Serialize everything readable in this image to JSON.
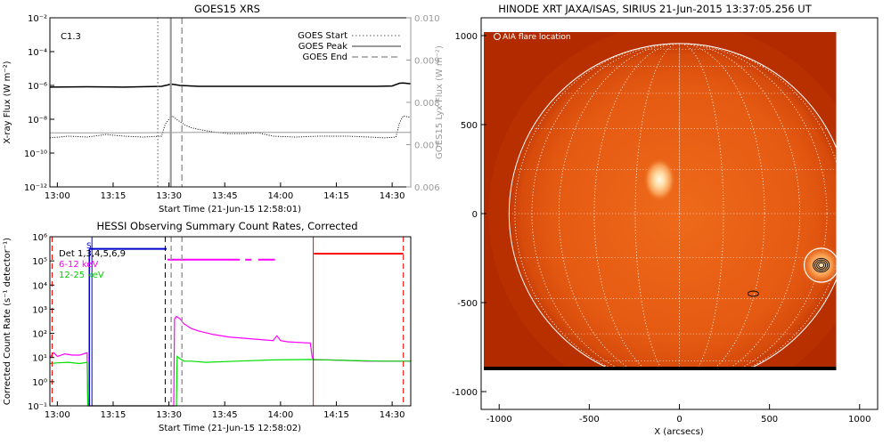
{
  "chart_data": [
    {
      "type": "line",
      "title": "GOES15 XRS",
      "xlabel": "Start Time (21-Jun-15 12:58:01)",
      "ylabel": "X-ray Flux (W m⁻²)",
      "ylabel_right": "GOES15 Lyx Flux (W m⁻²)",
      "xlim": [
        0,
        97
      ],
      "x_ticks": [
        2,
        17,
        32,
        47,
        62,
        77,
        92
      ],
      "x_ticklabels": [
        "13:00",
        "13:15",
        "13:30",
        "13:45",
        "14:00",
        "14:15",
        "14:30"
      ],
      "ylim_log": [
        -12,
        -2
      ],
      "y_ticklabels": [
        "10⁻¹²",
        "10⁻¹⁰",
        "10⁻⁸",
        "10⁻⁶",
        "10⁻⁴",
        "10⁻²"
      ],
      "ylim_right": [
        0.006,
        0.01
      ],
      "y_right_ticklabels": [
        "0.006",
        "0.007",
        "0.008",
        "0.009",
        "0.010"
      ],
      "class_label": "C1.3",
      "legend": {
        "placement": "top-right",
        "entries": [
          "GOES Start",
          "GOES Peak",
          "GOES End"
        ]
      },
      "markers_min": {
        "start": 29,
        "peak": 32.5,
        "end": 35.5
      },
      "series": [
        {
          "key": "long",
          "color": "#000000",
          "x": [
            0,
            10,
            20,
            30,
            31.5,
            32.5,
            33.5,
            35,
            40,
            50,
            60,
            70,
            80,
            88,
            92,
            94,
            95,
            97
          ],
          "logy": [
            -6.1,
            -6.08,
            -6.1,
            -6.05,
            -5.98,
            -5.92,
            -5.95,
            -6.0,
            -6.05,
            -6.05,
            -6.05,
            -6.05,
            -6.05,
            -6.05,
            -6.03,
            -5.87,
            -5.85,
            -5.9
          ]
        },
        {
          "key": "short",
          "color": "#000000",
          "x": [
            0,
            5,
            10,
            15,
            20,
            25,
            30,
            31,
            32,
            33,
            34,
            36,
            38,
            40,
            44,
            48,
            52,
            56,
            60,
            66,
            72,
            80,
            86,
            90,
            93,
            94,
            95,
            97
          ],
          "logy": [
            -9.1,
            -9.0,
            -9.05,
            -8.9,
            -9.0,
            -9.05,
            -9.0,
            -8.3,
            -8.0,
            -7.8,
            -8.0,
            -8.3,
            -8.5,
            -8.6,
            -8.75,
            -8.85,
            -8.85,
            -8.8,
            -9.0,
            -9.05,
            -9.0,
            -9.0,
            -9.05,
            -9.1,
            -9.05,
            -8.2,
            -7.8,
            -7.9
          ]
        },
        {
          "key": "lya",
          "color": "#9a9a9a",
          "x": [
            0,
            20,
            40,
            60,
            80,
            97
          ],
          "y": [
            0.00728,
            0.00728,
            0.00729,
            0.00729,
            0.00729,
            0.00729
          ]
        }
      ]
    },
    {
      "type": "line",
      "title": "HESSI Observing Summary Count Rates, Corrected",
      "xlabel": "Start Time (21-Jun-15 12:58:02)",
      "ylabel": "Corrected Count Rate (s⁻¹ detector⁻¹)",
      "xlim": [
        0,
        97
      ],
      "x_ticks": [
        2,
        17,
        32,
        47,
        62,
        77,
        92
      ],
      "x_ticklabels": [
        "13:00",
        "13:15",
        "13:30",
        "13:45",
        "14:00",
        "14:15",
        "14:30"
      ],
      "ylim_log": [
        -1,
        6
      ],
      "y_ticklabels": [
        "10⁻¹",
        "10⁰",
        "10¹",
        "10²",
        "10³",
        "10⁴",
        "10⁵",
        "10⁶"
      ],
      "legend": {
        "placement": "top-left",
        "entries": [
          "Det 1,3,4,5,6,9",
          "6-12 keV",
          "12-25 keV"
        ]
      },
      "flag_S_label": "S",
      "red_lines_min": [
        0.6,
        70.8,
        95
      ],
      "dashed_lines_min": [
        31,
        32.6,
        35.5
      ],
      "blue_solid_min": 11.3,
      "series": [
        {
          "key": "lo",
          "color": "#ff00ff",
          "x": [
            0,
            1,
            2,
            4,
            6,
            8,
            10,
            10.2,
            33.3,
            33.5,
            34,
            35,
            36,
            38,
            40,
            44,
            48,
            52,
            56,
            60,
            61,
            62,
            64,
            70,
            70.5,
            71,
            75,
            80,
            85,
            90,
            97
          ],
          "logy": [
            1.0,
            1.2,
            1.05,
            1.15,
            1.1,
            1.1,
            1.2,
            -1.0,
            -1.0,
            2.6,
            2.7,
            2.6,
            2.4,
            2.2,
            2.1,
            1.95,
            1.85,
            1.8,
            1.75,
            1.7,
            1.9,
            1.7,
            1.65,
            1.6,
            1.0,
            0.9,
            0.9,
            0.88,
            0.85,
            0.85,
            0.85
          ]
        },
        {
          "key": "hi",
          "color": "#00e000",
          "x": [
            0,
            2,
            5,
            8,
            10,
            10.2,
            34.0,
            34.2,
            35,
            36,
            38,
            42,
            50,
            60,
            70,
            80,
            90,
            97
          ],
          "logy": [
            0.75,
            0.78,
            0.8,
            0.75,
            0.8,
            -1.0,
            -1.0,
            1.05,
            0.95,
            0.85,
            0.85,
            0.8,
            0.85,
            0.9,
            0.92,
            0.88,
            0.85,
            0.85
          ]
        },
        {
          "key": "states_blue",
          "color": "#0000cc",
          "x": [
            10.6,
            31.4
          ],
          "logy": [
            5.5,
            5.5
          ]
        },
        {
          "key": "states_magenta",
          "color": "#ff00ff",
          "segments": [
            [
              31.6,
              51
            ],
            [
              52.5,
              54.2
            ],
            [
              56,
              60.5
            ]
          ],
          "logy": 5.05
        },
        {
          "key": "states_red",
          "color": "#ff0000",
          "x": [
            71,
            95
          ],
          "logy": [
            5.3,
            5.3
          ]
        }
      ]
    },
    {
      "type": "heatmap",
      "title": "HINODE XRT JAXA/ISAS, SIRIUS 21-Jun-2015 13:37:05.256 UT",
      "xlabel": "X (arcsecs)",
      "ylabel": "",
      "xlim": [
        -1100,
        1100
      ],
      "ylim": [
        -1100,
        1100
      ],
      "x_ticks": [
        -1000,
        -500,
        0,
        500,
        1000
      ],
      "y_ticks": [
        -1000,
        -500,
        0,
        500,
        1000
      ],
      "legend_label": "AIA flare location",
      "solar_radius_arcsec": 945,
      "image_extent": {
        "x": [
          -1085,
          870
        ],
        "y": [
          -880,
          1020
        ]
      },
      "flare_location": [
        787,
        -290
      ],
      "flare_circle_radius_arcsec": 90,
      "bright_region": [
        -110,
        190
      ],
      "contour_small": [
        410,
        -450
      ],
      "palette": {
        "disk": "#e65a12",
        "limb": "#c83800",
        "corona": "#b22a00",
        "bright": "#fff5d8"
      }
    }
  ]
}
